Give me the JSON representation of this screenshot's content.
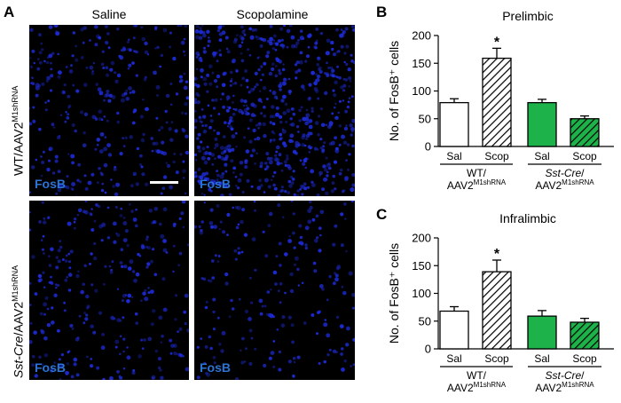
{
  "figure": {
    "panel_a": {
      "letter": "A",
      "columns": [
        "Saline",
        "Scopolamine"
      ],
      "rows": [
        {
          "prefix": "",
          "italic": "",
          "main": "WT/AAV2",
          "sup": "M1shRNA"
        },
        {
          "prefix": "",
          "italic": "Sst-Cre",
          "main": "/AAV2",
          "sup": "M1shRNA"
        }
      ],
      "stain_label": "FosB",
      "stain_color": "#2a74d6",
      "cell_color": "#1d2bd6",
      "density": [
        [
          0.45,
          0.95
        ],
        [
          0.4,
          0.3
        ]
      ]
    },
    "panel_b": {
      "letter": "B"
    },
    "panel_c": {
      "letter": "C"
    }
  },
  "chart_data": [
    {
      "type": "bar",
      "panel": "B",
      "title": "Prelimbic",
      "ylabel": "No. of FosB⁺ cells",
      "ylim": [
        0,
        200
      ],
      "yticks": [
        0,
        50,
        100,
        150,
        200
      ],
      "categories": [
        "Sal",
        "Scop",
        "Sal",
        "Scop"
      ],
      "values": [
        79,
        159,
        79,
        50
      ],
      "errors": [
        7,
        18,
        6,
        5
      ],
      "significance": [
        "",
        "*",
        "",
        ""
      ],
      "bar_styles": [
        "open",
        "hatched",
        "solid-green",
        "hatched-green"
      ],
      "groups": [
        {
          "line1": "WT/",
          "line2_main": "AAV2",
          "line2_sup": "M1shRNA",
          "italic": false
        },
        {
          "line1": "Sst-Cre/",
          "line2_main": "AAV2",
          "line2_sup": "M1shRNA",
          "italic": true
        }
      ],
      "green": "#1db34a"
    },
    {
      "type": "bar",
      "panel": "C",
      "title": "Infralimbic",
      "ylabel": "No. of FosB⁺ cells",
      "ylim": [
        0,
        200
      ],
      "yticks": [
        0,
        50,
        100,
        150,
        200
      ],
      "categories": [
        "Sal",
        "Scop",
        "Sal",
        "Scop"
      ],
      "values": [
        68,
        139,
        59,
        48
      ],
      "errors": [
        8,
        21,
        10,
        7
      ],
      "significance": [
        "",
        "*",
        "",
        ""
      ],
      "bar_styles": [
        "open",
        "hatched",
        "solid-green",
        "hatched-green"
      ],
      "groups": [
        {
          "line1": "WT/",
          "line2_main": "AAV2",
          "line2_sup": "M1shRNA",
          "italic": false
        },
        {
          "line1": "Sst-Cre/",
          "line2_main": "AAV2",
          "line2_sup": "M1shRNA",
          "italic": true
        }
      ],
      "green": "#1db34a"
    }
  ]
}
